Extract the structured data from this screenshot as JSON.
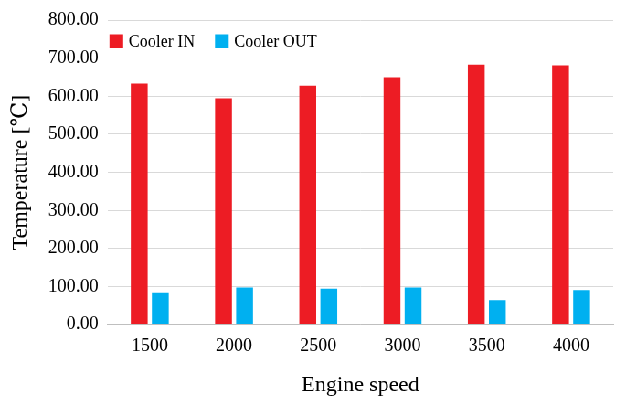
{
  "chart_data": {
    "type": "bar",
    "x_label": "Engine speed",
    "y_label": "Temperature [℃]",
    "categories": [
      "1500",
      "2000",
      "2500",
      "3000",
      "3500",
      "4000"
    ],
    "series": [
      {
        "name": "Cooler IN",
        "color": "#ED1C24",
        "values": [
          633,
          595,
          628,
          650,
          683,
          681
        ]
      },
      {
        "name": "Cooler OUT",
        "color": "#00B0F0",
        "values": [
          83,
          98,
          95,
          98,
          65,
          91
        ]
      }
    ],
    "ylim": [
      0,
      800
    ],
    "yticks": [
      {
        "value": 0,
        "label": "0.00"
      },
      {
        "value": 100,
        "label": "100.00"
      },
      {
        "value": 200,
        "label": "200.00"
      },
      {
        "value": 300,
        "label": "300.00"
      },
      {
        "value": 400,
        "label": "400.00"
      },
      {
        "value": 500,
        "label": "500.00"
      },
      {
        "value": 600,
        "label": "600.00"
      },
      {
        "value": 700,
        "label": "700.00"
      },
      {
        "value": 800,
        "label": "800.00"
      }
    ],
    "grid": true,
    "legend": "upper left"
  }
}
